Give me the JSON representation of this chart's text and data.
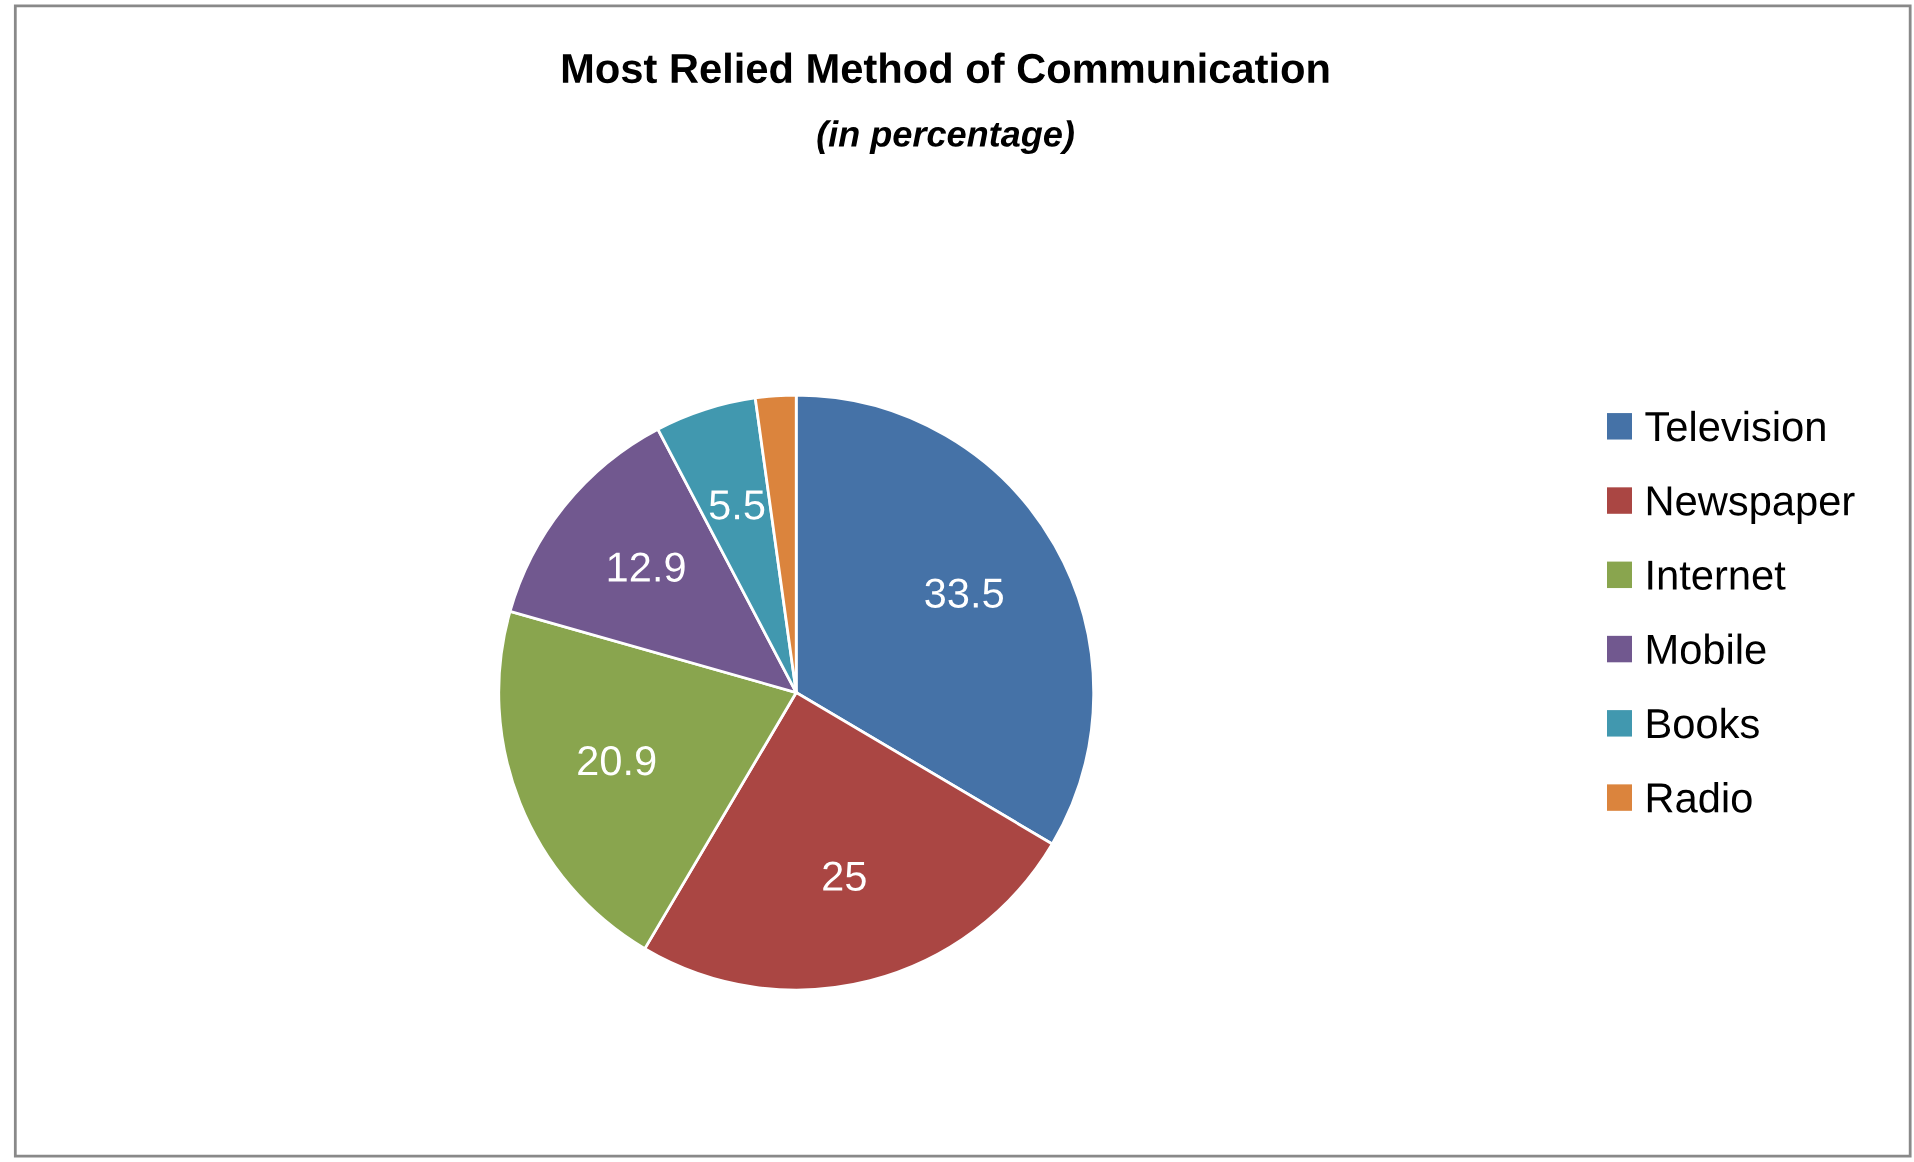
{
  "chart_data": {
    "type": "pie",
    "title": "Most Relied Method of Communication",
    "subtitle": "(in percentage)",
    "categories": [
      "Television",
      "Newspaper",
      "Internet",
      "Mobile",
      "Books",
      "Radio"
    ],
    "values": [
      33.5,
      25,
      20.9,
      12.9,
      5.5,
      2.2
    ],
    "colors": [
      "#4572a7",
      "#aa4643",
      "#89a54e",
      "#71588f",
      "#4198af",
      "#db843d"
    ],
    "value_labels": [
      "33.5",
      "25",
      "20.9",
      "12.9",
      "5.5",
      null
    ],
    "legend": "right"
  }
}
